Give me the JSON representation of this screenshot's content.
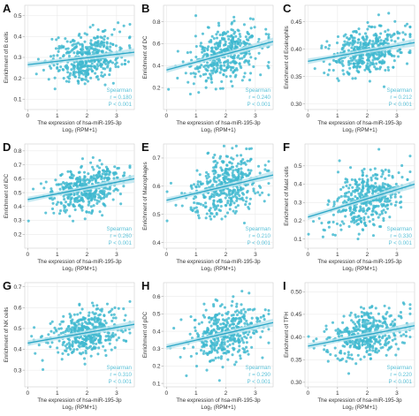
{
  "figure": {
    "colors": {
      "point": "#40b8cf",
      "line": "#2ba6c6",
      "band": "#b9e3ee",
      "stat": "#5cc2d8"
    },
    "xlabel_line1": "The expression of hsa-miR-195-3p",
    "xlabel_line2": "Log₂ (RPM+1)"
  },
  "chart_data": [
    {
      "type": "scatter",
      "letter": "A",
      "ylabel": "Enrichment of B cells",
      "xlim": [
        -0.1,
        3.6
      ],
      "ylim": [
        0.05,
        0.55
      ],
      "xticks": [
        "0",
        "1",
        "2",
        "3"
      ],
      "xtick_values": [
        0,
        1,
        2,
        3
      ],
      "yticks": [
        "0.1",
        "0.2",
        "0.3",
        "0.4",
        "0.5"
      ],
      "ytick_values": [
        0.1,
        0.2,
        0.3,
        0.4,
        0.5
      ],
      "fit": {
        "x": [
          0,
          3.6
        ],
        "y": [
          0.265,
          0.325
        ]
      },
      "cloud": {
        "center_y": 0.305,
        "spread_y": 0.075
      },
      "stats": {
        "method": "Spearman",
        "r": "r = 0.180",
        "p": "P < 0.001"
      }
    },
    {
      "type": "scatter",
      "letter": "B",
      "ylabel": "Enrichment of DC",
      "xlim": [
        -0.1,
        3.6
      ],
      "ylim": [
        0.0,
        0.95
      ],
      "xticks": [
        "0",
        "1",
        "2",
        "3"
      ],
      "xtick_values": [
        0,
        1,
        2,
        3
      ],
      "yticks": [
        "0.2",
        "0.4",
        "0.6",
        "0.8"
      ],
      "ytick_values": [
        0.2,
        0.4,
        0.6,
        0.8
      ],
      "fit": {
        "x": [
          0,
          3.6
        ],
        "y": [
          0.36,
          0.62
        ]
      },
      "cloud": {
        "center_y": 0.47,
        "spread_y": 0.17
      },
      "stats": {
        "method": "Spearman",
        "r": "r = 0.240",
        "p": "P < 0.001"
      }
    },
    {
      "type": "scatter",
      "letter": "C",
      "ylabel": "Enrichment of Eosinophils",
      "xlim": [
        -0.1,
        3.6
      ],
      "ylim": [
        0.29,
        0.48
      ],
      "xticks": [
        "0",
        "1",
        "2",
        "3"
      ],
      "xtick_values": [
        0,
        1,
        2,
        3
      ],
      "yticks": [
        "0.30",
        "0.35",
        "0.40",
        "0.45"
      ],
      "ytick_values": [
        0.3,
        0.35,
        0.4,
        0.45
      ],
      "fit": {
        "x": [
          0,
          3.6
        ],
        "y": [
          0.378,
          0.412
        ]
      },
      "cloud": {
        "center_y": 0.395,
        "spread_y": 0.028
      },
      "stats": {
        "method": "Spearman",
        "r": "r = 0.212",
        "p": "P < 0.001"
      }
    },
    {
      "type": "scatter",
      "letter": "D",
      "ylabel": "Enrichment of iDC",
      "xlim": [
        -0.1,
        3.6
      ],
      "ylim": [
        0.1,
        0.85
      ],
      "xticks": [
        "0",
        "1",
        "2",
        "3"
      ],
      "xtick_values": [
        0,
        1,
        2,
        3
      ],
      "yticks": [
        "0.2",
        "0.3",
        "0.4",
        "0.5",
        "0.6",
        "0.7",
        "0.8"
      ],
      "ytick_values": [
        0.2,
        0.3,
        0.4,
        0.5,
        0.6,
        0.7,
        0.8
      ],
      "fit": {
        "x": [
          0,
          3.6
        ],
        "y": [
          0.45,
          0.6
        ]
      },
      "cloud": {
        "center_y": 0.53,
        "spread_y": 0.11
      },
      "stats": {
        "method": "Spearman",
        "r": "r = 0.260",
        "p": "P < 0.001"
      }
    },
    {
      "type": "scatter",
      "letter": "E",
      "ylabel": "Enrichment of Macrophages",
      "xlim": [
        -0.1,
        3.6
      ],
      "ylim": [
        0.38,
        0.75
      ],
      "xticks": [
        "0",
        "1",
        "2",
        "3"
      ],
      "xtick_values": [
        0,
        1,
        2,
        3
      ],
      "yticks": [
        "0.4",
        "0.5",
        "0.6",
        "0.7"
      ],
      "ytick_values": [
        0.4,
        0.5,
        0.6,
        0.7
      ],
      "fit": {
        "x": [
          0,
          3.6
        ],
        "y": [
          0.55,
          0.64
        ]
      },
      "cloud": {
        "center_y": 0.6,
        "spread_y": 0.07
      },
      "stats": {
        "method": "Spearman",
        "r": "r = 0.210",
        "p": "P < 0.001"
      }
    },
    {
      "type": "scatter",
      "letter": "F",
      "ylabel": "Enrichment of Mast cells",
      "xlim": [
        -0.1,
        3.6
      ],
      "ylim": [
        0.05,
        0.62
      ],
      "xticks": [
        "0",
        "1",
        "2",
        "3"
      ],
      "xtick_values": [
        0,
        1,
        2,
        3
      ],
      "yticks": [
        "0.1",
        "0.2",
        "0.3",
        "0.4",
        "0.5"
      ],
      "ytick_values": [
        0.1,
        0.2,
        0.3,
        0.4,
        0.5
      ],
      "fit": {
        "x": [
          0,
          3.6
        ],
        "y": [
          0.22,
          0.4
        ]
      },
      "cloud": {
        "center_y": 0.31,
        "spread_y": 0.1
      },
      "stats": {
        "method": "Spearman",
        "r": "r = 0.330",
        "p": "P < 0.001"
      }
    },
    {
      "type": "scatter",
      "letter": "G",
      "ylabel": "Enrichment of NK cells",
      "xlim": [
        -0.1,
        3.6
      ],
      "ylim": [
        0.22,
        0.72
      ],
      "xticks": [
        "0",
        "1",
        "2",
        "3"
      ],
      "xtick_values": [
        0,
        1,
        2,
        3
      ],
      "yticks": [
        "0.3",
        "0.4",
        "0.5",
        "0.6",
        "0.7"
      ],
      "ytick_values": [
        0.3,
        0.4,
        0.5,
        0.6,
        0.7
      ],
      "fit": {
        "x": [
          0,
          3.6
        ],
        "y": [
          0.43,
          0.52
        ]
      },
      "cloud": {
        "center_y": 0.48,
        "spread_y": 0.07
      },
      "stats": {
        "method": "Spearman",
        "r": "r = 0.310",
        "p": "P < 0.001"
      }
    },
    {
      "type": "scatter",
      "letter": "H",
      "ylabel": "Enrichment of pDC",
      "xlim": [
        -0.1,
        3.6
      ],
      "ylim": [
        0.08,
        0.68
      ],
      "xticks": [
        "0",
        "1",
        "2",
        "3"
      ],
      "xtick_values": [
        0,
        1,
        2,
        3
      ],
      "yticks": [
        "0.1",
        "0.2",
        "0.3",
        "0.4",
        "0.5",
        "0.6"
      ],
      "ytick_values": [
        0.1,
        0.2,
        0.3,
        0.4,
        0.5,
        0.6
      ],
      "fit": {
        "x": [
          0,
          3.6
        ],
        "y": [
          0.31,
          0.45
        ]
      },
      "cloud": {
        "center_y": 0.39,
        "spread_y": 0.1
      },
      "stats": {
        "method": "Spearman",
        "r": "r = 0.290",
        "p": "P < 0.001"
      }
    },
    {
      "type": "scatter",
      "letter": "I",
      "ylabel": "Enrichment of TFH",
      "xlim": [
        -0.1,
        3.6
      ],
      "ylim": [
        0.29,
        0.52
      ],
      "xticks": [
        "0",
        "1",
        "2",
        "3"
      ],
      "xtick_values": [
        0,
        1,
        2,
        3
      ],
      "yticks": [
        "0.30",
        "0.35",
        "0.40",
        "0.45",
        "0.50"
      ],
      "ytick_values": [
        0.3,
        0.35,
        0.4,
        0.45,
        0.5
      ],
      "fit": {
        "x": [
          0,
          3.6
        ],
        "y": [
          0.38,
          0.425
        ]
      },
      "cloud": {
        "center_y": 0.405,
        "spread_y": 0.035
      },
      "stats": {
        "method": "Spearman",
        "r": "r = 0.220",
        "p": "P < 0.001"
      }
    }
  ]
}
